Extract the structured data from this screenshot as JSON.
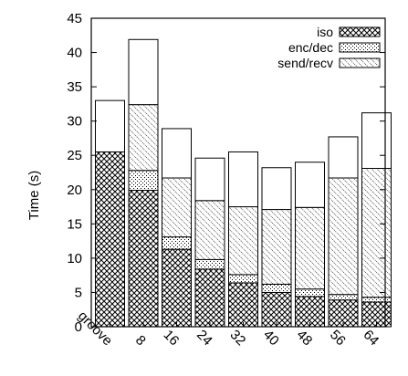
{
  "chart_data": {
    "type": "bar",
    "stacked": true,
    "categories": [
      "groove",
      "8",
      "16",
      "24",
      "32",
      "40",
      "48",
      "56",
      "64"
    ],
    "series": [
      {
        "name": "iso",
        "pattern": "crosshatch",
        "values": [
          25.5,
          19.9,
          11.3,
          8.4,
          6.4,
          5.0,
          4.4,
          3.9,
          3.6
        ]
      },
      {
        "name": "enc/dec",
        "pattern": "dots",
        "values": [
          0.0,
          2.9,
          1.8,
          1.4,
          1.2,
          1.2,
          1.1,
          0.8,
          0.7
        ]
      },
      {
        "name": "send/recv",
        "pattern": "diagonal",
        "values": [
          0.0,
          9.6,
          8.6,
          8.6,
          9.9,
          10.9,
          11.9,
          17.0,
          18.8
        ]
      },
      {
        "name": "",
        "pattern": "none",
        "values": [
          7.5,
          9.5,
          7.2,
          6.2,
          8.0,
          6.1,
          6.6,
          6.0,
          8.1
        ]
      }
    ],
    "ylabel": "Time (s)",
    "xlabel": "",
    "ylim": [
      0,
      45
    ],
    "yticks": [
      0,
      5,
      10,
      15,
      20,
      25,
      30,
      35,
      40,
      45
    ],
    "legend_position": "top-right",
    "grid": false,
    "colors": {
      "stroke": "#000000",
      "background": "#ffffff"
    }
  }
}
